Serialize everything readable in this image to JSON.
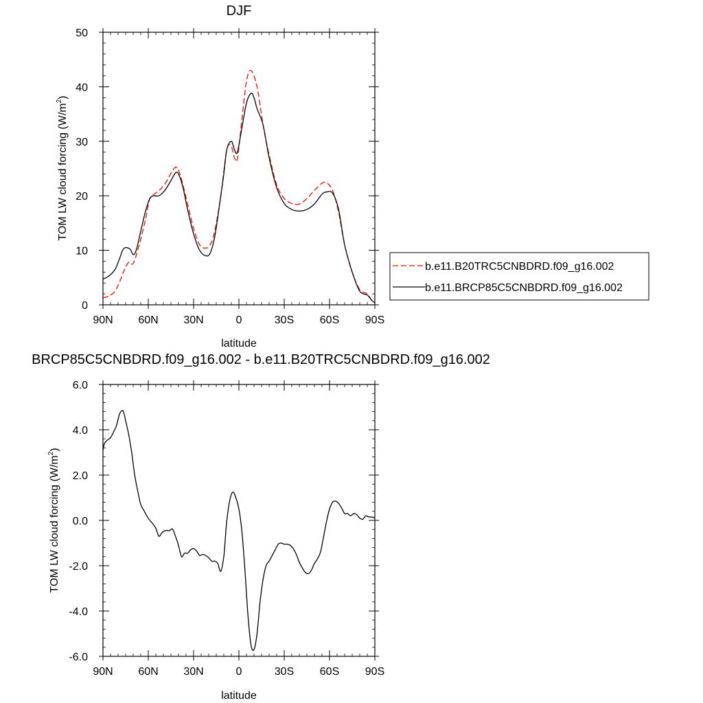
{
  "chart_data": [
    {
      "type": "line",
      "title": "DJF",
      "xlabel": "latitude",
      "ylabel_main": "TOM LW cloud forcing (W/m",
      "ylabel_sup": "2",
      "ylabel_close": ")",
      "xlim": [
        90,
        -90
      ],
      "ylim": [
        0,
        50
      ],
      "x_ticks": [
        {
          "value": 90,
          "label": "90N"
        },
        {
          "value": 60,
          "label": "60N"
        },
        {
          "value": 30,
          "label": "30N"
        },
        {
          "value": 0,
          "label": "0"
        },
        {
          "value": -30,
          "label": "30S"
        },
        {
          "value": -60,
          "label": "60S"
        },
        {
          "value": -90,
          "label": "90S"
        }
      ],
      "y_ticks": [
        {
          "value": 0,
          "label": "0"
        },
        {
          "value": 10,
          "label": "10"
        },
        {
          "value": 20,
          "label": "20"
        },
        {
          "value": 30,
          "label": "30"
        },
        {
          "value": 40,
          "label": "40"
        },
        {
          "value": 50,
          "label": "50"
        }
      ],
      "legend_position": "right",
      "series": [
        {
          "name": "b.e11.B20TRC5CNBDRD.f09_g16.002",
          "color": "#ff0000",
          "dashed": true,
          "x": [
            90,
            86,
            82,
            79,
            76,
            73,
            70,
            66,
            62,
            59,
            56,
            52,
            48,
            44,
            41,
            38,
            34,
            30,
            26,
            22,
            19,
            16,
            12,
            8,
            5,
            3,
            1,
            -2,
            -5,
            -8,
            -12,
            -16,
            -20,
            -25,
            -30,
            -35,
            -40,
            -45,
            -50,
            -55,
            -58,
            -62,
            -66,
            -70,
            -75,
            -80,
            -85,
            -88,
            -90
          ],
          "y": [
            1.3,
            1.6,
            2.5,
            4.2,
            6.3,
            7.8,
            7.6,
            11.0,
            15.5,
            19.5,
            20.3,
            21.2,
            22.6,
            24.6,
            25.2,
            23.0,
            18.5,
            14.0,
            11.0,
            10.4,
            11.0,
            13.5,
            20.0,
            28.5,
            29.0,
            27.0,
            26.8,
            34.0,
            41.0,
            43.0,
            40.0,
            33.0,
            27.5,
            22.0,
            19.5,
            18.6,
            18.5,
            19.5,
            21.0,
            22.3,
            22.4,
            21.0,
            17.0,
            11.0,
            6.0,
            2.8,
            2.0,
            0.8,
            0.3
          ]
        },
        {
          "name": "b.e11.BRCP85C5CNBDRD.f09_g16.002",
          "color": "#000000",
          "dashed": false,
          "x": [
            90,
            86,
            82,
            79,
            77,
            75,
            72,
            70,
            68,
            65,
            62,
            59,
            56,
            53,
            49,
            45,
            42,
            40,
            37,
            34,
            30,
            26,
            22,
            19,
            16,
            13,
            10,
            8,
            5,
            3,
            1,
            -2,
            -5,
            -8,
            -10,
            -12,
            -16,
            -20,
            -25,
            -30,
            -35,
            -40,
            -45,
            -50,
            -55,
            -58,
            -62,
            -66,
            -70,
            -75,
            -80,
            -85,
            -88,
            -90
          ],
          "y": [
            4.7,
            5.3,
            6.5,
            8.5,
            10.0,
            10.5,
            10.2,
            9.2,
            10.0,
            13.5,
            17.0,
            19.5,
            20.0,
            20.0,
            21.0,
            22.8,
            24.2,
            24.0,
            21.5,
            17.5,
            13.0,
            10.0,
            9.0,
            9.5,
            12.5,
            18.0,
            24.0,
            28.5,
            30.0,
            28.5,
            28.0,
            32.5,
            37.0,
            38.8,
            38.0,
            36.0,
            33.0,
            27.0,
            21.5,
            18.6,
            17.5,
            17.2,
            17.5,
            18.5,
            20.3,
            20.7,
            20.5,
            17.5,
            11.0,
            6.0,
            2.5,
            1.8,
            0.8,
            0.4
          ]
        }
      ]
    },
    {
      "type": "line",
      "title": "BRCP85C5CNBDRD.f09_g16.002 - b.e11.B20TRC5CNBDRD.f09_g16.002",
      "xlabel": "latitude",
      "ylabel_main": "TOM LW cloud forcing (W/m",
      "ylabel_sup": "2",
      "ylabel_close": ")",
      "xlim": [
        90,
        -90
      ],
      "ylim": [
        -6,
        6
      ],
      "x_ticks": [
        {
          "value": 90,
          "label": "90N"
        },
        {
          "value": 60,
          "label": "60N"
        },
        {
          "value": 30,
          "label": "30N"
        },
        {
          "value": 0,
          "label": "0"
        },
        {
          "value": -30,
          "label": "30S"
        },
        {
          "value": -60,
          "label": "60S"
        },
        {
          "value": -90,
          "label": "90S"
        }
      ],
      "y_ticks": [
        {
          "value": -6,
          "label": "-6.0"
        },
        {
          "value": -4,
          "label": "-4.0"
        },
        {
          "value": -2,
          "label": "-2.0"
        },
        {
          "value": 0,
          "label": "0.0"
        },
        {
          "value": 2,
          "label": "2.0"
        },
        {
          "value": 4,
          "label": "4.0"
        },
        {
          "value": 6,
          "label": "6.0"
        }
      ],
      "series": [
        {
          "name": "",
          "color": "#000000",
          "dashed": false,
          "x": [
            90,
            89,
            87,
            85,
            83,
            81,
            79,
            77,
            76,
            75,
            73,
            71,
            69,
            67,
            65,
            63,
            61,
            59,
            57,
            55,
            53,
            51,
            49,
            46,
            44,
            42,
            40,
            38,
            36,
            34,
            32,
            30,
            28,
            26,
            24,
            22,
            20,
            18,
            16,
            14,
            12,
            10,
            9,
            8,
            6,
            4,
            2,
            0,
            -2,
            -4,
            -6,
            -8,
            -10,
            -12,
            -14,
            -16,
            -18,
            -20,
            -22,
            -24,
            -26,
            -28,
            -30,
            -32,
            -34,
            -36,
            -38,
            -40,
            -42,
            -44,
            -46,
            -48,
            -50,
            -52,
            -54,
            -56,
            -58,
            -60,
            -62,
            -64,
            -66,
            -68,
            -70,
            -72,
            -74,
            -76,
            -78,
            -80,
            -82,
            -84,
            -86,
            -88,
            -90
          ],
          "y": [
            3.1,
            3.4,
            3.55,
            3.65,
            3.9,
            4.2,
            4.7,
            4.85,
            4.7,
            4.4,
            3.8,
            3.0,
            2.0,
            1.3,
            0.7,
            0.45,
            0.2,
            0.0,
            -0.15,
            -0.35,
            -0.7,
            -0.55,
            -0.45,
            -0.45,
            -0.38,
            -0.7,
            -1.1,
            -1.6,
            -1.45,
            -1.45,
            -1.3,
            -1.25,
            -1.35,
            -1.55,
            -1.5,
            -1.55,
            -1.65,
            -1.8,
            -1.8,
            -1.9,
            -2.25,
            -1.6,
            -0.8,
            0.0,
            0.9,
            1.25,
            1.0,
            0.5,
            -0.5,
            -2.2,
            -4.2,
            -5.5,
            -5.7,
            -5.0,
            -3.6,
            -2.6,
            -2.0,
            -1.8,
            -1.55,
            -1.3,
            -1.05,
            -1.0,
            -1.05,
            -1.05,
            -1.1,
            -1.25,
            -1.5,
            -1.85,
            -2.1,
            -2.3,
            -2.35,
            -2.2,
            -1.9,
            -1.7,
            -1.4,
            -0.75,
            -0.05,
            0.5,
            0.8,
            0.85,
            0.75,
            0.55,
            0.3,
            0.3,
            0.2,
            0.3,
            0.25,
            0.1,
            0.05,
            0.2,
            0.15,
            0.15,
            0.1
          ]
        }
      ]
    }
  ]
}
